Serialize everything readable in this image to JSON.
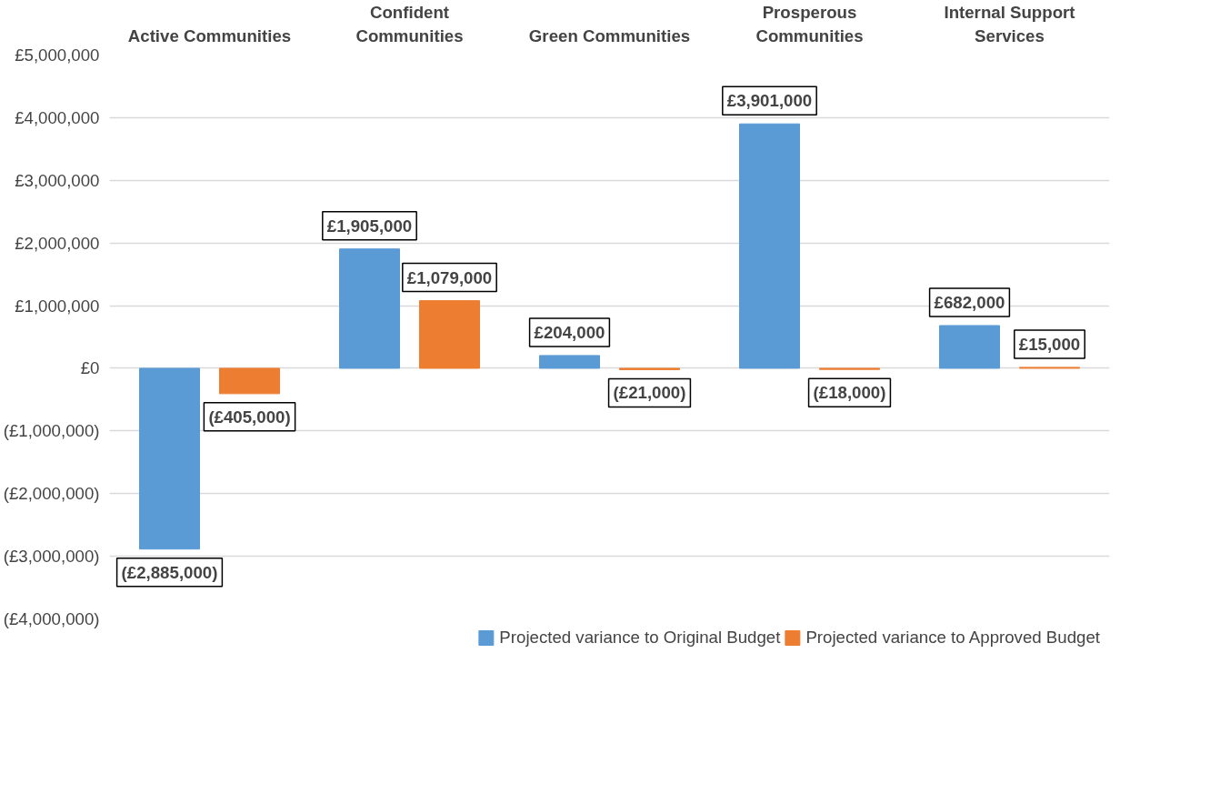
{
  "chart_data": {
    "type": "bar",
    "categories": [
      "Active Communities",
      "Confident Communities",
      "Green Communities",
      "Prosperous Communities",
      "Internal Support Services"
    ],
    "series": [
      {
        "name": "Projected variance to Original Budget",
        "color": "#5b9bd5",
        "values": [
          -2885000,
          1905000,
          204000,
          3901000,
          682000
        ],
        "value_labels": [
          "(£2,885,000)",
          "£1,905,000",
          "£204,000",
          "£3,901,000",
          "£682,000"
        ]
      },
      {
        "name": "Projected variance to Approved Budget",
        "color": "#ed7d31",
        "values": [
          -405000,
          1079000,
          -21000,
          -18000,
          15000
        ],
        "value_labels": [
          "(£405,000)",
          "£1,079,000",
          "(£21,000)",
          "(£18,000)",
          "£15,000"
        ]
      }
    ],
    "ylim": [
      -4000000,
      5000000
    ],
    "yticks": [
      {
        "value": -4000000,
        "label": "(£4,000,000)"
      },
      {
        "value": -3000000,
        "label": "(£3,000,000)"
      },
      {
        "value": -2000000,
        "label": "(£2,000,000)"
      },
      {
        "value": -1000000,
        "label": "(£1,000,000)"
      },
      {
        "value": 0,
        "label": "£0"
      },
      {
        "value": 1000000,
        "label": "£1,000,000"
      },
      {
        "value": 2000000,
        "label": "£2,000,000"
      },
      {
        "value": 3000000,
        "label": "£3,000,000"
      },
      {
        "value": 4000000,
        "label": "£4,000,000"
      },
      {
        "value": 5000000,
        "label": "£5,000,000"
      }
    ],
    "grid": "y",
    "legend": "bottom"
  }
}
